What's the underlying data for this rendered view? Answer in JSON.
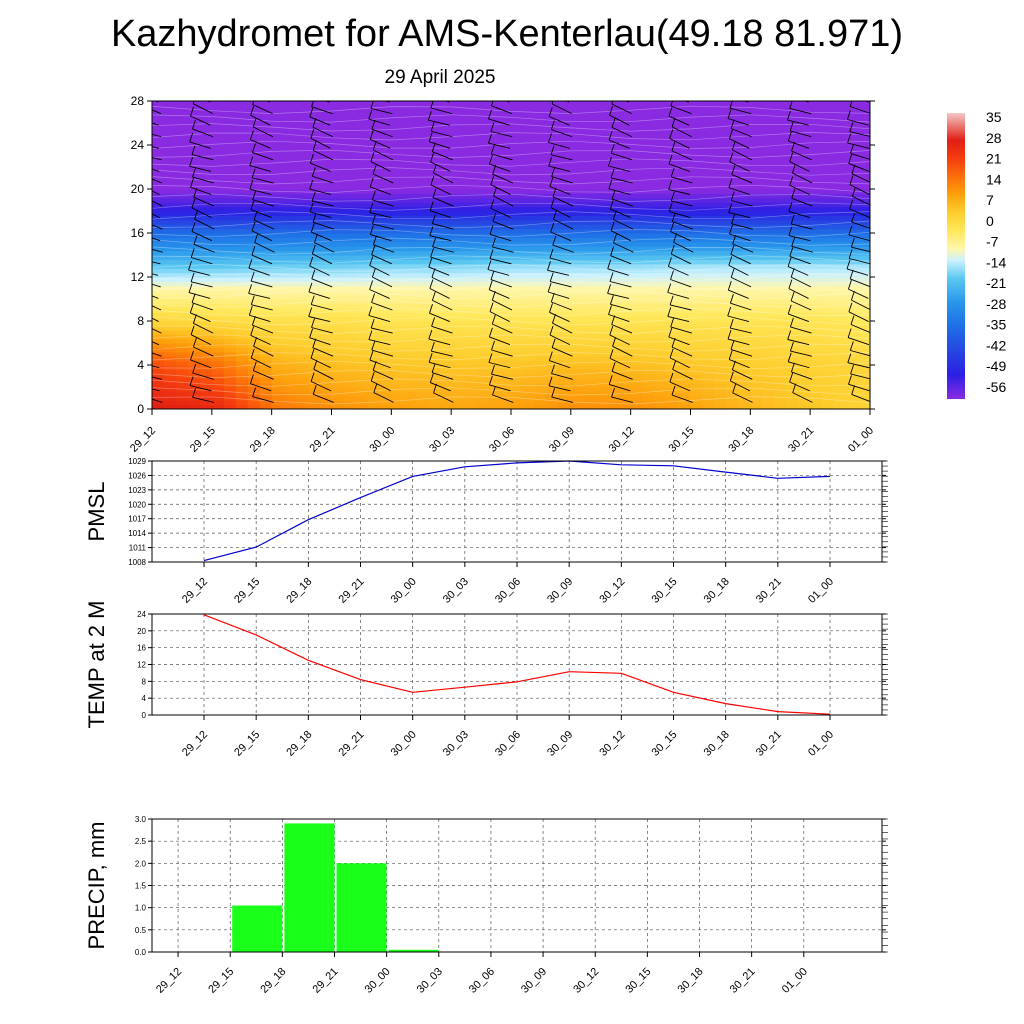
{
  "title": "Kazhydromet for AMS-Kenterlau(49.18 81.971)",
  "subtitle": "29 April 2025",
  "colorbar": {
    "labels": [
      "35",
      "28",
      "21",
      "14",
      "7",
      "0",
      "-7",
      "-14",
      "-21",
      "-28",
      "-35",
      "-42",
      "-49",
      "-56"
    ],
    "colors": [
      "#f4c9c9",
      "#e0251d",
      "#f3360f",
      "#fb6a09",
      "#fd9b0a",
      "#fcc72a",
      "#fff07a",
      "#ccf2ff",
      "#58c7f0",
      "#1e93e6",
      "#1e63e0",
      "#2a3bd9",
      "#2b1fe4",
      "#8a2be2"
    ]
  },
  "chart_data": [
    {
      "type": "heatmap",
      "x": [
        "29_12",
        "29_15",
        "29_18",
        "29_21",
        "30_00",
        "30_03",
        "30_06",
        "30_09",
        "30_12",
        "30_15",
        "30_18",
        "30_21",
        "01_00"
      ],
      "yticks": [
        "0",
        "4",
        "8",
        "12",
        "16",
        "20",
        "24",
        "28"
      ],
      "ylim": [
        0,
        28
      ],
      "color_range": [
        -56,
        35
      ],
      "temperature_profile": [
        {
          "level": 0,
          "values": [
            26,
            24,
            13,
            10,
            8,
            7,
            8,
            10,
            10,
            8,
            5,
            3,
            1
          ]
        },
        {
          "level": 4,
          "values": [
            18,
            14,
            6,
            4,
            3,
            3,
            3,
            4,
            4,
            3,
            2,
            1,
            0
          ]
        },
        {
          "level": 8,
          "values": [
            0,
            -1,
            -2,
            -2,
            -3,
            -3,
            -3,
            -3,
            -3,
            -3,
            -3,
            -3,
            -4
          ]
        },
        {
          "level": 11,
          "values": [
            -10,
            -10,
            -10,
            -10,
            -10,
            -10,
            -10,
            -10,
            -10,
            -10,
            -10,
            -10,
            -10
          ]
        },
        {
          "level": 13,
          "values": [
            -20,
            -20,
            -19,
            -19,
            -18,
            -18,
            -17,
            -17,
            -17,
            -16,
            -16,
            -16,
            -16
          ]
        },
        {
          "level": 16,
          "values": [
            -36,
            -36,
            -36,
            -36,
            -36,
            -36,
            -36,
            -36,
            -36,
            -36,
            -36,
            -36,
            -36
          ]
        },
        {
          "level": 18,
          "values": [
            -52,
            -52,
            -52,
            -52,
            -52,
            -52,
            -52,
            -52,
            -52,
            -52,
            -52,
            -52,
            -52
          ]
        },
        {
          "level": 20,
          "values": [
            -60,
            -60,
            -60,
            -60,
            -60,
            -60,
            -60,
            -60,
            -60,
            -60,
            -60,
            -60,
            -60
          ]
        },
        {
          "level": 28,
          "values": [
            -60,
            -60,
            -60,
            -60,
            -60,
            -60,
            -60,
            -60,
            -60,
            -60,
            -60,
            -60,
            -60
          ]
        }
      ],
      "wind_barbs": true
    },
    {
      "type": "line",
      "ylabel": "PMSL",
      "x": [
        "29_12",
        "29_15",
        "29_18",
        "29_21",
        "30_00",
        "30_03",
        "30_06",
        "30_09",
        "30_12",
        "30_15",
        "30_18",
        "30_21",
        "01_00"
      ],
      "yticks": [
        "1008",
        "1011",
        "1014",
        "1017",
        "1020",
        "1023",
        "1026",
        "1029"
      ],
      "ylim": [
        1008,
        1029
      ],
      "series": [
        {
          "values": [
            1008.3,
            1011.1,
            1016.8,
            1021.4,
            1025.8,
            1027.8,
            1028.6,
            1029.0,
            1028.2,
            1028.0,
            1026.7,
            1025.4,
            1025.8
          ],
          "color": "#0000cc"
        }
      ],
      "grid": true
    },
    {
      "type": "line",
      "ylabel": "TEMP at 2 M",
      "x": [
        "29_12",
        "29_15",
        "29_18",
        "29_21",
        "30_00",
        "30_03",
        "30_06",
        "30_09",
        "30_12",
        "30_15",
        "30_18",
        "30_21",
        "01_00"
      ],
      "yticks": [
        "0",
        "4",
        "8",
        "12",
        "16",
        "20",
        "24"
      ],
      "ylim": [
        0,
        24
      ],
      "series": [
        {
          "values": [
            23.8,
            19.0,
            13.0,
            8.4,
            5.4,
            6.6,
            7.9,
            10.3,
            9.9,
            5.4,
            2.7,
            0.8,
            0.2
          ],
          "color": "#ff0000"
        }
      ],
      "grid": true
    },
    {
      "type": "bar",
      "ylabel": "PRECIP, mm",
      "x": [
        "29_12",
        "29_15",
        "29_18",
        "29_21",
        "30_00",
        "30_03",
        "30_06",
        "30_09",
        "30_12",
        "30_15",
        "30_18",
        "30_21",
        "01_00"
      ],
      "yticks": [
        "0.0",
        "0.5",
        "1.0",
        "1.5",
        "2.0",
        "2.5",
        "3.0"
      ],
      "ylim": [
        0,
        3
      ],
      "values": [
        0,
        1.05,
        2.9,
        2.0,
        0.05,
        0,
        0,
        0,
        0,
        0,
        0,
        0,
        0
      ],
      "color": "#19ff19",
      "grid": true
    }
  ]
}
